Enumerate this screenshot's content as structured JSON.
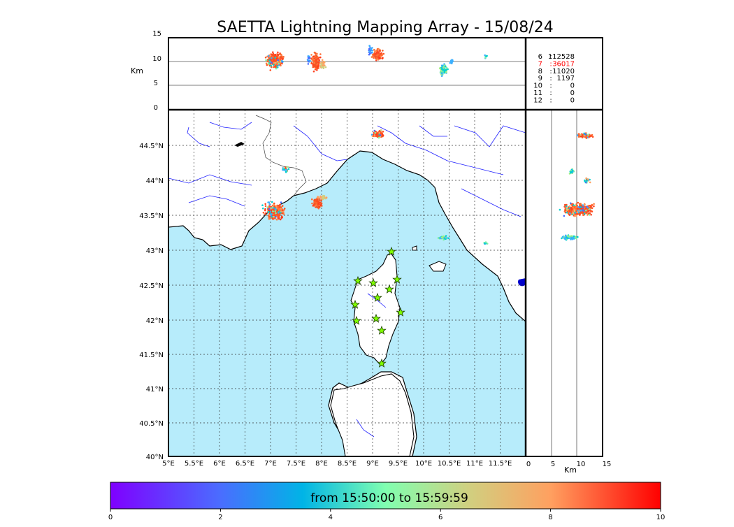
{
  "title": "SAETTA Lightning Mapping Array - 15/08/24",
  "altitude_axis": {
    "unit_label": "Km",
    "ticks": [
      "15",
      "10",
      "5",
      "0"
    ]
  },
  "side_axis": {
    "unit_label": "Km",
    "ticks": [
      "0",
      "5",
      "10",
      "15"
    ]
  },
  "lat_ticks": [
    "44.5°N",
    "44°N",
    "43.5°N",
    "43°N",
    "42.5°N",
    "42°N",
    "41.5°N",
    "41°N",
    "40.5°N",
    "40°N"
  ],
  "lon_ticks": [
    "5°E",
    "5.5°E",
    "6°E",
    "6.5°E",
    "7°E",
    "7.5°E",
    "8°E",
    "8.5°E",
    "9°E",
    "9.5°E",
    "10°E",
    "10.5°E",
    "11°E",
    "11.5°E"
  ],
  "source_counts": [
    {
      "level": "6",
      "sep": ":",
      "count": "112528",
      "color": "#000000"
    },
    {
      "level": "7",
      "sep": ":",
      "count": "36017",
      "color": "#ff0000"
    },
    {
      "level": "8",
      "sep": ":",
      "count": "11020",
      "color": "#000000"
    },
    {
      "level": "9",
      "sep": ":",
      "count": "1197",
      "color": "#000000"
    },
    {
      "level": "10",
      "sep": ":",
      "count": "0",
      "color": "#000000"
    },
    {
      "level": "11",
      "sep": ":",
      "count": "0",
      "color": "#000000"
    },
    {
      "level": "12",
      "sep": ":",
      "count": "0",
      "color": "#000000"
    }
  ],
  "colorbar": {
    "label": "from 15:50:00 to 15:59:59",
    "ticks": [
      "0",
      "2",
      "4",
      "6",
      "8",
      "10"
    ]
  },
  "colors": {
    "sea": "#b7ecfb",
    "rivers": "#2020ff",
    "lightning_early": "#3cb0ff",
    "lightning_mid": "#80f0a0",
    "lightning_late": "#ff5020",
    "station_marker": "#7fff00"
  }
}
